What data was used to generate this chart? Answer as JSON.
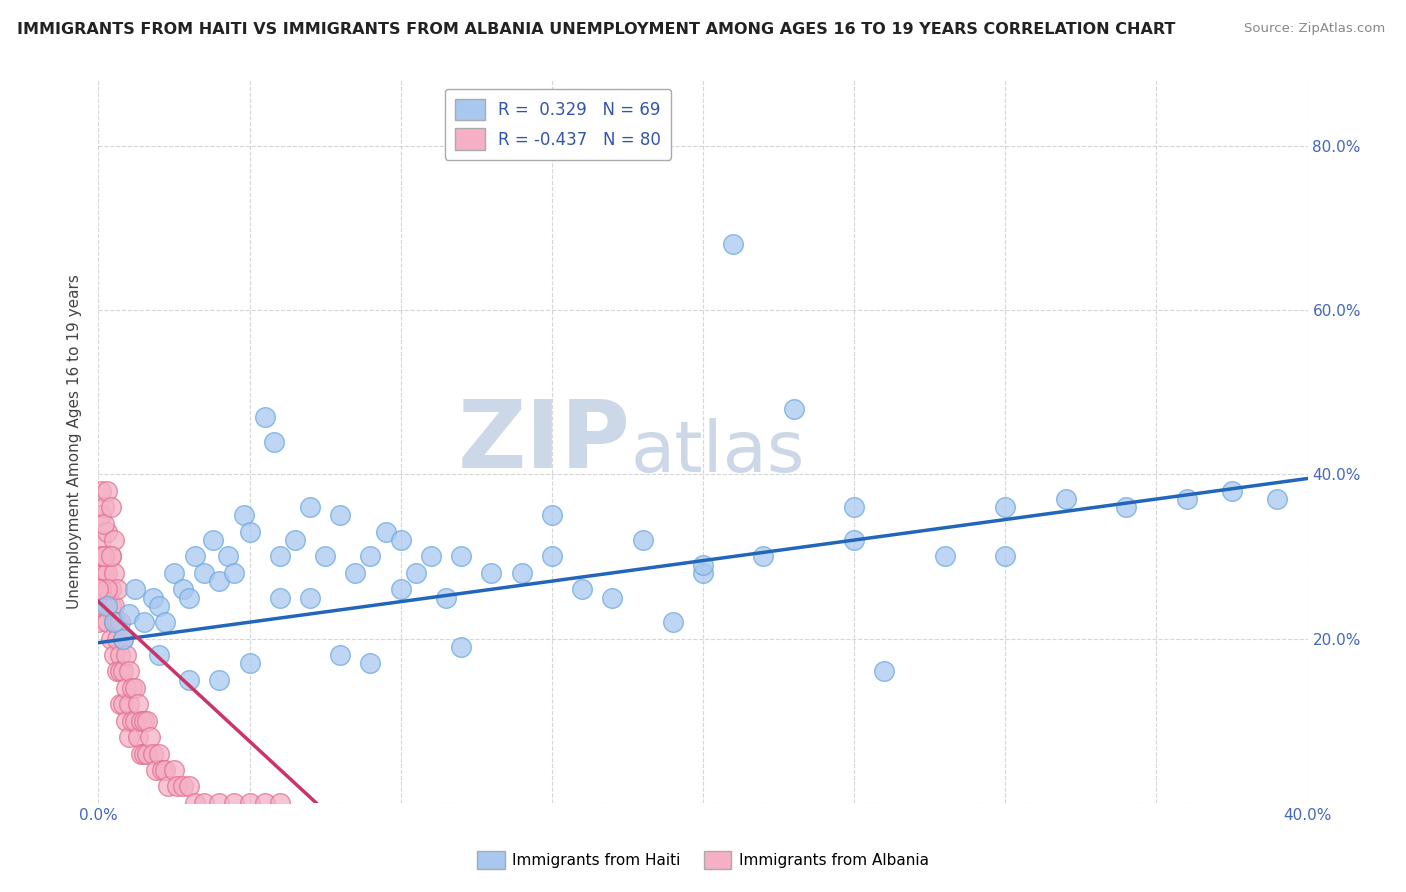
{
  "title": "IMMIGRANTS FROM HAITI VS IMMIGRANTS FROM ALBANIA UNEMPLOYMENT AMONG AGES 16 TO 19 YEARS CORRELATION CHART",
  "source": "Source: ZipAtlas.com",
  "ylabel": "Unemployment Among Ages 16 to 19 years",
  "xlim": [
    0.0,
    0.4
  ],
  "ylim": [
    0.0,
    0.88
  ],
  "yticks": [
    0.0,
    0.2,
    0.4,
    0.6,
    0.8
  ],
  "xticks": [
    0.0,
    0.05,
    0.1,
    0.15,
    0.2,
    0.25,
    0.3,
    0.35,
    0.4
  ],
  "ytick_labels": [
    "",
    "20.0%",
    "40.0%",
    "60.0%",
    "80.0%"
  ],
  "haiti_color": "#a8c8f0",
  "haiti_edge": "#6aaade",
  "albania_color": "#f5b0c5",
  "albania_edge": "#e07090",
  "haiti_R": 0.329,
  "haiti_N": 69,
  "albania_R": -0.437,
  "albania_N": 80,
  "haiti_line_color": "#2266bb",
  "albania_line_color": "#cc3366",
  "watermark_ZIP": "ZIP",
  "watermark_atlas": "atlas",
  "watermark_color": "#ccd8e8",
  "legend_text_color": "#3355aa",
  "background_color": "#ffffff",
  "grid_color": "#bbbbbb",
  "haiti_x": [
    0.003,
    0.005,
    0.008,
    0.01,
    0.012,
    0.015,
    0.018,
    0.02,
    0.022,
    0.025,
    0.028,
    0.03,
    0.032,
    0.035,
    0.038,
    0.04,
    0.043,
    0.045,
    0.048,
    0.05,
    0.055,
    0.058,
    0.06,
    0.065,
    0.07,
    0.075,
    0.08,
    0.085,
    0.09,
    0.095,
    0.1,
    0.105,
    0.11,
    0.115,
    0.12,
    0.13,
    0.14,
    0.15,
    0.16,
    0.17,
    0.18,
    0.19,
    0.2,
    0.21,
    0.22,
    0.23,
    0.25,
    0.26,
    0.28,
    0.3,
    0.32,
    0.34,
    0.36,
    0.375,
    0.39,
    0.02,
    0.03,
    0.04,
    0.06,
    0.08,
    0.1,
    0.12,
    0.05,
    0.07,
    0.09,
    0.15,
    0.2,
    0.25,
    0.3
  ],
  "haiti_y": [
    0.24,
    0.22,
    0.2,
    0.23,
    0.26,
    0.22,
    0.25,
    0.24,
    0.22,
    0.28,
    0.26,
    0.25,
    0.3,
    0.28,
    0.32,
    0.27,
    0.3,
    0.28,
    0.35,
    0.33,
    0.47,
    0.44,
    0.3,
    0.32,
    0.36,
    0.3,
    0.35,
    0.28,
    0.3,
    0.33,
    0.32,
    0.28,
    0.3,
    0.25,
    0.3,
    0.28,
    0.28,
    0.3,
    0.26,
    0.25,
    0.32,
    0.22,
    0.28,
    0.68,
    0.3,
    0.48,
    0.32,
    0.16,
    0.3,
    0.36,
    0.37,
    0.36,
    0.37,
    0.38,
    0.37,
    0.18,
    0.15,
    0.15,
    0.25,
    0.18,
    0.26,
    0.19,
    0.17,
    0.25,
    0.17,
    0.35,
    0.29,
    0.36,
    0.3
  ],
  "albania_x": [
    0.0,
    0.0,
    0.001,
    0.001,
    0.001,
    0.001,
    0.002,
    0.002,
    0.002,
    0.002,
    0.003,
    0.003,
    0.003,
    0.003,
    0.004,
    0.004,
    0.004,
    0.004,
    0.005,
    0.005,
    0.005,
    0.005,
    0.006,
    0.006,
    0.006,
    0.006,
    0.007,
    0.007,
    0.007,
    0.007,
    0.008,
    0.008,
    0.008,
    0.009,
    0.009,
    0.009,
    0.01,
    0.01,
    0.01,
    0.011,
    0.011,
    0.012,
    0.012,
    0.013,
    0.013,
    0.014,
    0.014,
    0.015,
    0.015,
    0.016,
    0.016,
    0.017,
    0.018,
    0.019,
    0.02,
    0.021,
    0.022,
    0.023,
    0.025,
    0.026,
    0.028,
    0.03,
    0.032,
    0.035,
    0.04,
    0.045,
    0.05,
    0.055,
    0.06,
    0.0,
    0.001,
    0.002,
    0.003,
    0.004,
    0.005,
    0.001,
    0.002,
    0.003,
    0.004,
    0.0
  ],
  "albania_y": [
    0.22,
    0.24,
    0.35,
    0.38,
    0.32,
    0.28,
    0.36,
    0.3,
    0.28,
    0.24,
    0.33,
    0.28,
    0.25,
    0.22,
    0.3,
    0.26,
    0.24,
    0.2,
    0.28,
    0.24,
    0.22,
    0.18,
    0.26,
    0.22,
    0.2,
    0.16,
    0.22,
    0.18,
    0.16,
    0.12,
    0.2,
    0.16,
    0.12,
    0.18,
    0.14,
    0.1,
    0.16,
    0.12,
    0.08,
    0.14,
    0.1,
    0.14,
    0.1,
    0.12,
    0.08,
    0.1,
    0.06,
    0.1,
    0.06,
    0.1,
    0.06,
    0.08,
    0.06,
    0.04,
    0.06,
    0.04,
    0.04,
    0.02,
    0.04,
    0.02,
    0.02,
    0.02,
    0.0,
    0.0,
    0.0,
    0.0,
    0.0,
    0.0,
    0.0,
    0.26,
    0.3,
    0.34,
    0.38,
    0.36,
    0.32,
    0.26,
    0.3,
    0.26,
    0.3,
    0.26
  ]
}
